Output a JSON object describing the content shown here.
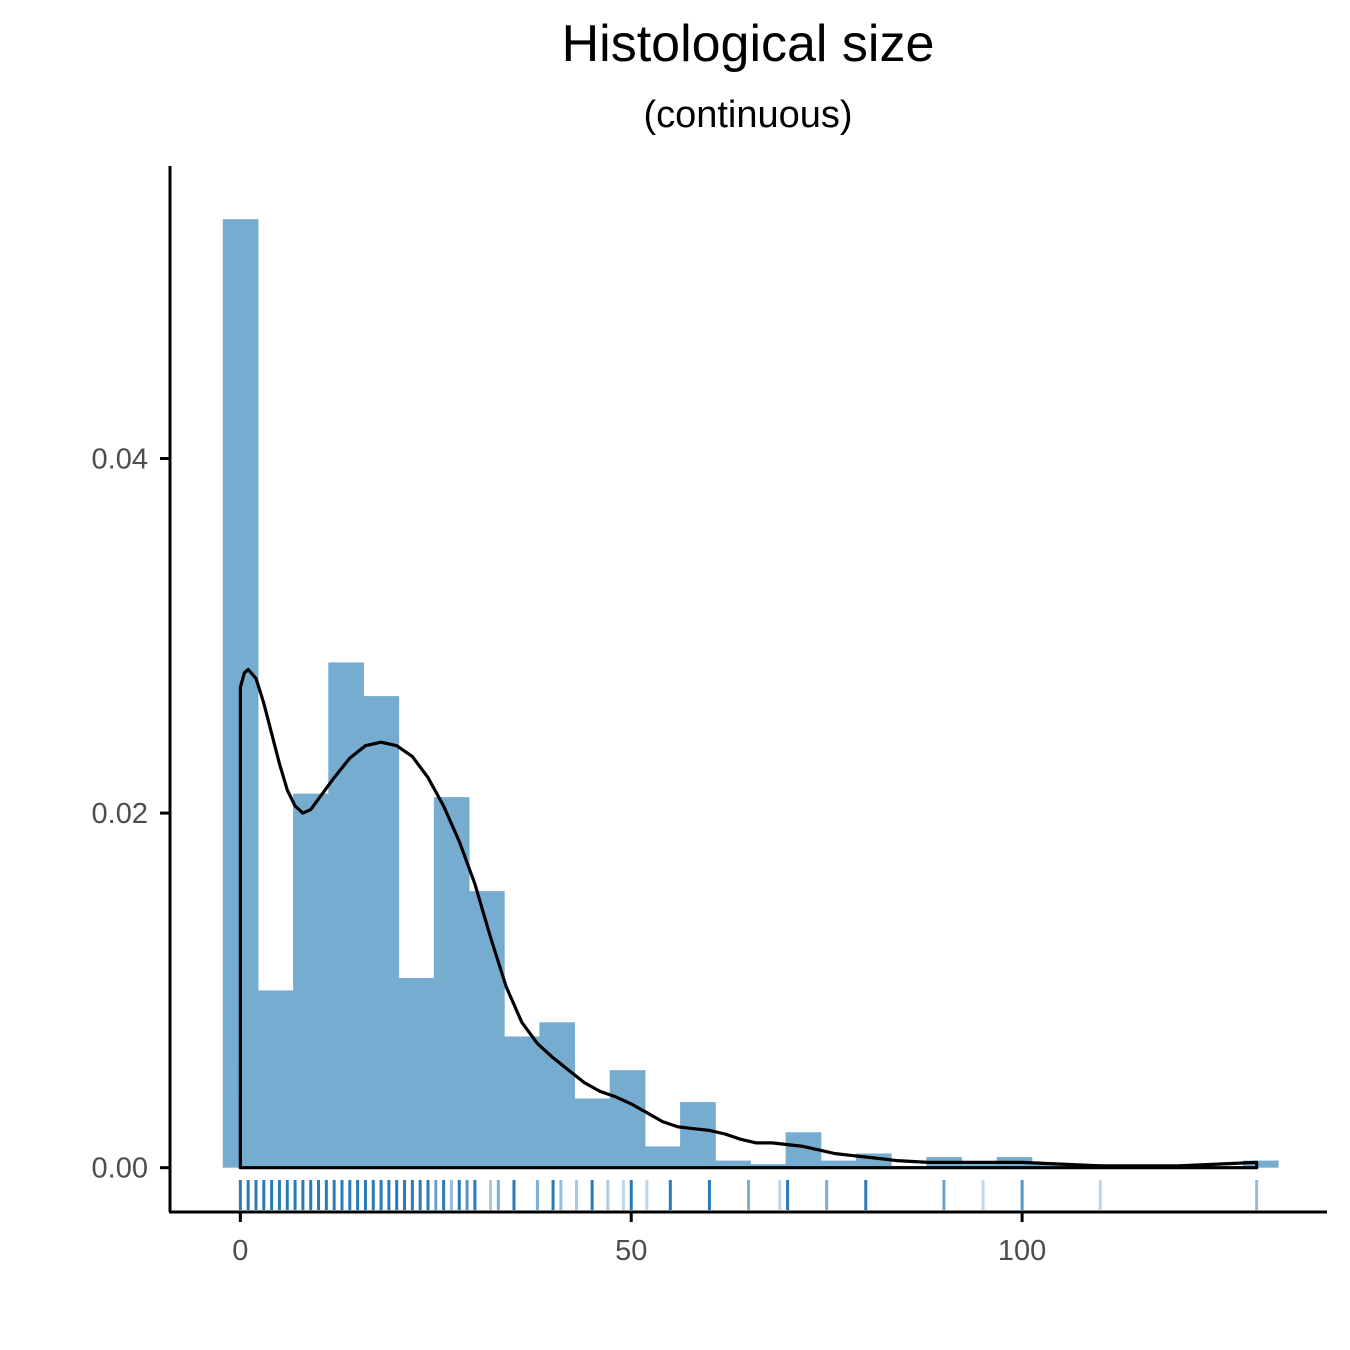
{
  "chart_data": {
    "type": "bar",
    "title": "Histological size",
    "subtitle": "(continuous)",
    "xlabel": "",
    "ylabel": "",
    "xlim": [
      -9,
      139
    ],
    "ylim": [
      -0.0025,
      0.0565
    ],
    "x_ticks": [
      0,
      50,
      100
    ],
    "y_ticks": [
      0.0,
      0.02,
      0.04
    ],
    "x_tick_labels": [
      "0",
      "50",
      "100"
    ],
    "y_tick_labels": [
      "0.00",
      "0.02",
      "0.04"
    ],
    "grid": false,
    "legend": "none",
    "colors": {
      "bars": "#77acd1",
      "density": "#000000",
      "rug": "#2a7ab8"
    },
    "histogram": {
      "bin_width": 4.5,
      "bins": [
        {
          "x0": -2.25,
          "x1": 2.25,
          "density": 0.0535
        },
        {
          "x0": 2.25,
          "x1": 6.75,
          "density": 0.01
        },
        {
          "x0": 6.75,
          "x1": 11.25,
          "density": 0.0211
        },
        {
          "x0": 11.25,
          "x1": 15.75,
          "density": 0.0285
        },
        {
          "x0": 15.75,
          "x1": 20.25,
          "density": 0.0266
        },
        {
          "x0": 20.25,
          "x1": 24.75,
          "density": 0.0107
        },
        {
          "x0": 24.75,
          "x1": 29.25,
          "density": 0.0209
        },
        {
          "x0": 29.25,
          "x1": 33.75,
          "density": 0.0156
        },
        {
          "x0": 33.75,
          "x1": 38.25,
          "density": 0.0074
        },
        {
          "x0": 38.25,
          "x1": 42.75,
          "density": 0.0082
        },
        {
          "x0": 42.75,
          "x1": 47.25,
          "density": 0.0039
        },
        {
          "x0": 47.25,
          "x1": 51.75,
          "density": 0.0055
        },
        {
          "x0": 51.75,
          "x1": 56.25,
          "density": 0.0012
        },
        {
          "x0": 56.25,
          "x1": 60.75,
          "density": 0.0037
        },
        {
          "x0": 60.75,
          "x1": 65.25,
          "density": 0.0004
        },
        {
          "x0": 65.25,
          "x1": 69.75,
          "density": 0.0002
        },
        {
          "x0": 69.75,
          "x1": 74.25,
          "density": 0.002
        },
        {
          "x0": 74.25,
          "x1": 78.75,
          "density": 0.0004
        },
        {
          "x0": 78.75,
          "x1": 83.25,
          "density": 0.0008
        },
        {
          "x0": 83.25,
          "x1": 87.75,
          "density": 0.0001
        },
        {
          "x0": 87.75,
          "x1": 92.25,
          "density": 0.0006
        },
        {
          "x0": 92.25,
          "x1": 96.75,
          "density": 0.0002
        },
        {
          "x0": 96.75,
          "x1": 101.25,
          "density": 0.0006
        },
        {
          "x0": 101.25,
          "x1": 105.75,
          "density": 0.0002
        },
        {
          "x0": 105.75,
          "x1": 110.25,
          "density": 0.0002
        },
        {
          "x0": 110.25,
          "x1": 114.75,
          "density": 0.0001
        },
        {
          "x0": 114.75,
          "x1": 119.25,
          "density": 0.0001
        },
        {
          "x0": 119.25,
          "x1": 123.75,
          "density": 0.0001
        },
        {
          "x0": 123.75,
          "x1": 128.25,
          "density": 0.0001
        },
        {
          "x0": 128.25,
          "x1": 132.75,
          "density": 0.0004
        }
      ]
    },
    "density_curve": {
      "x": [
        0,
        0.5,
        1,
        2,
        3,
        4,
        5,
        6,
        7,
        8,
        9,
        10,
        12,
        14,
        16,
        18,
        20,
        22,
        24,
        26,
        28,
        30,
        32,
        34,
        36,
        38,
        40,
        42,
        44,
        46,
        48,
        50,
        52,
        54,
        56,
        58,
        60,
        62,
        64,
        66,
        68,
        70,
        72,
        74,
        76,
        78,
        80,
        84,
        88,
        92,
        96,
        100,
        105,
        110,
        115,
        120,
        125,
        130
      ],
      "y": [
        0.0271,
        0.0279,
        0.0281,
        0.0276,
        0.0262,
        0.0245,
        0.0228,
        0.0213,
        0.0204,
        0.02,
        0.0202,
        0.0208,
        0.022,
        0.0231,
        0.0238,
        0.024,
        0.0238,
        0.0232,
        0.022,
        0.0204,
        0.0184,
        0.016,
        0.013,
        0.0102,
        0.0082,
        0.007,
        0.0062,
        0.0055,
        0.0048,
        0.0043,
        0.004,
        0.0036,
        0.0031,
        0.0026,
        0.0023,
        0.0022,
        0.0021,
        0.0019,
        0.0016,
        0.0014,
        0.0014,
        0.0013,
        0.0012,
        0.001,
        0.0008,
        0.0007,
        0.0006,
        0.0004,
        0.0003,
        0.0003,
        0.0003,
        0.0003,
        0.0002,
        0.0001,
        0.0001,
        0.0001,
        0.0002,
        0.0003
      ],
      "support": [
        0,
        130
      ]
    },
    "rug": {
      "values": [
        0,
        1,
        2,
        3,
        4,
        5,
        6,
        7,
        8,
        9,
        10,
        11,
        12,
        13,
        14,
        15,
        16,
        17,
        18,
        19,
        20,
        21,
        22,
        23,
        24,
        25,
        26,
        27,
        28,
        29,
        30,
        32,
        33,
        35,
        38,
        40,
        41,
        43,
        45,
        47,
        49,
        50,
        52,
        55,
        60,
        65,
        69,
        70,
        75,
        80,
        90,
        95,
        100,
        110,
        130
      ],
      "opacity": [
        1,
        1,
        1,
        1,
        1,
        1,
        1,
        1,
        1,
        1,
        1,
        1,
        1,
        1,
        1,
        1,
        1,
        1,
        1,
        1,
        1,
        1,
        1,
        1,
        1,
        0.7,
        1,
        0.5,
        1,
        0.8,
        1,
        0.4,
        0.6,
        1,
        0.6,
        1,
        0.5,
        0.4,
        1,
        0.4,
        0.3,
        1,
        0.3,
        1,
        1,
        0.6,
        0.3,
        1,
        0.6,
        1,
        0.7,
        0.3,
        0.8,
        0.3,
        0.5
      ]
    }
  }
}
